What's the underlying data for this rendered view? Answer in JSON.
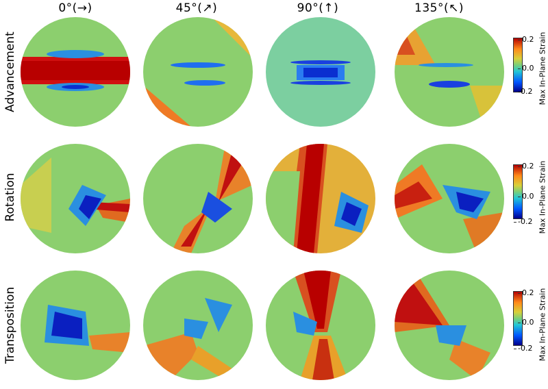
{
  "columns": [
    "0°(→)",
    "45°(↗)",
    "90°(↑)",
    "135°(↖)"
  ],
  "rows": [
    "Advancement",
    "Rotation",
    "Transposition"
  ],
  "colorbar": {
    "label": "Max In-Plane Strain",
    "ticks": [
      "0.2",
      "0.0",
      "-0.2"
    ],
    "colors": [
      "#00008b",
      "#0055ff",
      "#22c7d6",
      "#7ad07a",
      "#d8d03a",
      "#ff8a1a",
      "#b50000"
    ]
  }
}
